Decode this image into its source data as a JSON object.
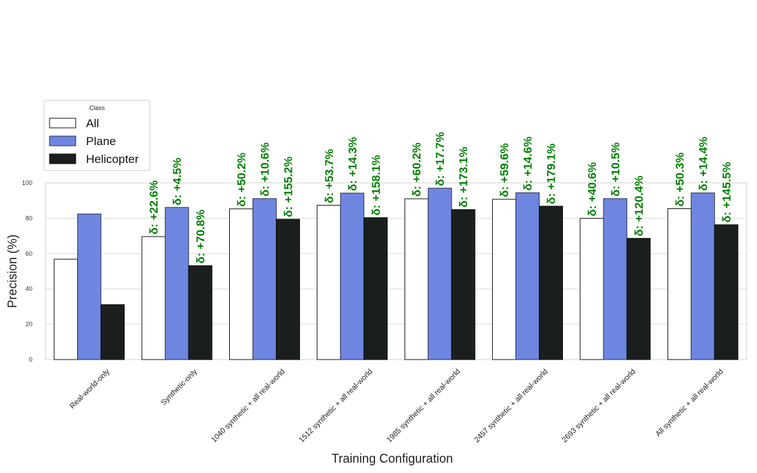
{
  "chart_data": {
    "type": "bar",
    "title": "",
    "xlabel": "Training Configuration",
    "ylabel": "Precision (%)",
    "ylim": [
      0,
      100
    ],
    "yticks": [
      0,
      20,
      40,
      60,
      80,
      100
    ],
    "grid": true,
    "legend": {
      "title": "Class",
      "placement": "top-left (above plot)"
    },
    "categories": [
      "Real-world-only",
      "Synthetic-only",
      "1040 synthetic + all real-world",
      "1512 synthetic + all real-world",
      "1985 synthetic + all real-world",
      "2457 synthetic + all real-world",
      "2693 synthetic + all real-world",
      "All synthetic + all real-world"
    ],
    "series": [
      {
        "name": "All",
        "color": "#ffffff",
        "values": [
          56.8,
          69.6,
          85.3,
          87.3,
          91.0,
          90.7,
          79.9,
          85.4
        ],
        "annotations": [
          null,
          "δ: +22.6%",
          "δ: +50.2%",
          "δ: +53.7%",
          "δ: +60.2%",
          "δ: +59.6%",
          "δ: +40.6%",
          "δ: +50.3%"
        ]
      },
      {
        "name": "Plane",
        "color": "#6f86e0",
        "values": [
          82.4,
          86.1,
          91.1,
          94.2,
          97.0,
          94.4,
          91.1,
          94.3
        ],
        "annotations": [
          null,
          "δ: +4.5%",
          "δ: +10.6%",
          "δ: +14.3%",
          "δ: +17.7%",
          "δ: +14.6%",
          "δ: +10.5%",
          "δ: +14.4%"
        ]
      },
      {
        "name": "Helicopter",
        "color": "#1a1f1e",
        "values": [
          31.1,
          53.1,
          79.4,
          80.3,
          84.9,
          86.8,
          68.6,
          76.3
        ],
        "annotations": [
          null,
          "δ: +70.8%",
          "δ: +155.2%",
          "δ: +158.1%",
          "δ: +173.1%",
          "δ: +179.1%",
          "δ: +120.4%",
          "δ: +145.5%"
        ]
      }
    ],
    "annotation_color": "#008000"
  }
}
